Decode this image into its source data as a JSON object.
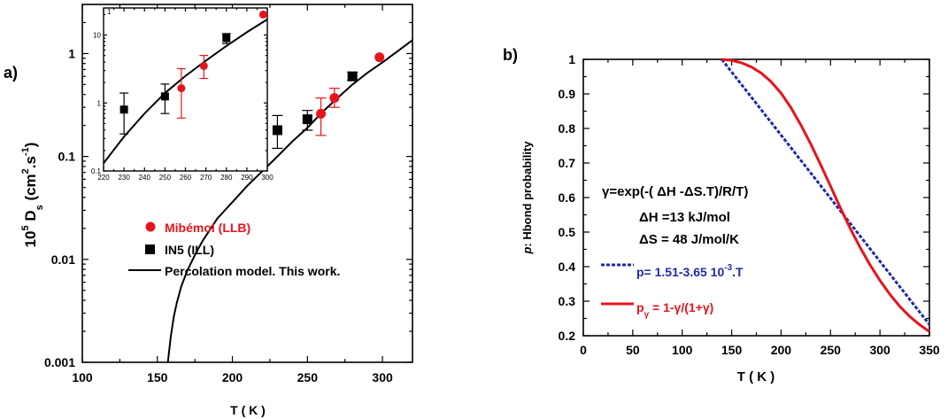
{
  "colors": {
    "red": "#e8141b",
    "black": "#000000",
    "blue": "#1f2aa8"
  },
  "chart_data": [
    {
      "type": "scatter",
      "panel_label": "a)",
      "xlabel": "T ( K )",
      "ylabel": {
        "main": "10",
        "sup1": "5",
        "mid": " D",
        "sub": "s",
        "unit": " (cm",
        "sup2": "2",
        "unit2": ".s",
        "sup3": "-1",
        "close": ")"
      },
      "xlim": [
        100,
        320
      ],
      "ylim": [
        0.001,
        3
      ],
      "yscale": "log",
      "xticks": [
        100,
        150,
        200,
        250,
        300
      ],
      "xticklabels": [
        "100",
        "150",
        "200",
        "250",
        "300"
      ],
      "yticks": [
        0.001,
        0.01,
        0.1,
        1
      ],
      "yticklabels": [
        "0.001",
        "0.01",
        "0.1",
        "1"
      ],
      "series": [
        {
          "name": "Mibémol (LLB)",
          "marker": "circle",
          "color": "#e8141b",
          "points": [
            [
              259,
              0.26,
              0.16,
              0.37
            ],
            [
              268,
              0.37,
              0.3,
              0.46
            ],
            [
              298,
              0.92,
              0.92,
              0.92
            ]
          ]
        },
        {
          "name": "IN5 (ILL)",
          "marker": "square",
          "color": "#000000",
          "points": [
            [
              230,
              0.18,
              0.12,
              0.25
            ],
            [
              250,
              0.23,
              0.18,
              0.28
            ],
            [
              280,
              0.6,
              0.55,
              0.66
            ]
          ]
        },
        {
          "name": "Percolation model. This work.",
          "kind": "curve",
          "color": "#000000",
          "x": [
            157,
            159,
            161,
            163,
            166,
            170,
            175,
            180,
            190,
            200,
            210,
            220,
            230,
            240,
            250,
            260,
            270,
            280,
            290,
            300,
            310,
            320
          ],
          "y": [
            0.001,
            0.0018,
            0.0028,
            0.0038,
            0.0055,
            0.0078,
            0.011,
            0.015,
            0.025,
            0.036,
            0.052,
            0.072,
            0.1,
            0.14,
            0.19,
            0.27,
            0.37,
            0.5,
            0.65,
            0.82,
            1.05,
            1.35
          ]
        }
      ],
      "legend": [
        "Mibémol (LLB)",
        "IN5 (ILL)",
        "Percolation model. This work."
      ],
      "inset": {
        "xlim": [
          220,
          300
        ],
        "ylim": [
          0.1,
          25
        ],
        "yscale": "log",
        "xticks": [
          220,
          230,
          240,
          250,
          260,
          270,
          280,
          290,
          300
        ],
        "xticklabels": [
          "220",
          "230",
          "240",
          "250",
          "260",
          "270",
          "280",
          "290",
          "300"
        ],
        "yticks": [
          0.1,
          1,
          10
        ],
        "yticklabels": [
          "0.1",
          "1",
          "10"
        ],
        "corner_label": "1",
        "series": [
          {
            "name": "Mibémol (LLB)",
            "marker": "circle",
            "color": "#e8141b",
            "points": [
              [
                258,
                1.65,
                0.6,
                3.2
              ],
              [
                269,
                3.5,
                2.3,
                5.0
              ],
              [
                298,
                20,
                20,
                20
              ]
            ]
          },
          {
            "name": "IN5 (ILL)",
            "marker": "square",
            "color": "#000000",
            "points": [
              [
                230,
                0.8,
                0.35,
                1.4
              ],
              [
                250,
                1.25,
                0.7,
                1.9
              ],
              [
                280,
                9.0,
                7.5,
                10.5
              ]
            ]
          },
          {
            "name": "Percolation model. This work.",
            "kind": "curve",
            "color": "#000000",
            "x": [
              220,
              230,
              240,
              250,
              260,
              270,
              280,
              290,
              300
            ],
            "y": [
              0.13,
              0.32,
              0.7,
              1.4,
              2.5,
              4.2,
              6.9,
              11,
              17
            ]
          }
        ]
      }
    },
    {
      "type": "line",
      "panel_label": "b)",
      "xlabel": "T ( K )",
      "ylabel": {
        "italic": "p",
        "rest": ": Hbond probability"
      },
      "xlim": [
        0,
        350
      ],
      "ylim": [
        0.2,
        1.0
      ],
      "xticks": [
        0,
        50,
        100,
        150,
        200,
        250,
        300,
        350
      ],
      "xticklabels": [
        "0",
        "50",
        "100",
        "150",
        "200",
        "250",
        "300",
        "350"
      ],
      "yticks": [
        0.2,
        0.3,
        0.4,
        0.5,
        0.6,
        0.7,
        0.8,
        0.9,
        1.0
      ],
      "yticklabels": [
        "0.2",
        "0.3",
        "0.4",
        "0.5",
        "0.6",
        "0.7",
        "0.8",
        "0.9",
        "1"
      ],
      "annotations": [
        "γ=exp(-( ΔH -ΔS.T)/R/T)",
        "ΔH =13 kJ/mol",
        "ΔS = 48 J/mol/K"
      ],
      "series": [
        {
          "name": "p= 1.51-3.65 10-3.T",
          "style": "dashed",
          "color": "#1f2aa8",
          "x": [
            140,
            350
          ],
          "y": [
            1.0,
            0.2325
          ]
        },
        {
          "name": "pγ = 1-γ/(1+γ)",
          "style": "solid",
          "color": "#e8141b",
          "x": [
            140,
            150,
            160,
            170,
            180,
            190,
            200,
            210,
            220,
            230,
            240,
            250,
            260,
            270,
            280,
            290,
            300,
            310,
            320,
            330,
            340,
            350
          ],
          "y": [
            1.0,
            0.997,
            0.99,
            0.978,
            0.96,
            0.935,
            0.902,
            0.86,
            0.81,
            0.755,
            0.695,
            0.633,
            0.57,
            0.51,
            0.455,
            0.405,
            0.36,
            0.32,
            0.285,
            0.256,
            0.232,
            0.212
          ]
        }
      ],
      "legend": {
        "blue": {
          "main": "p= 1.51-3.65 10",
          "sup": "-3",
          "tail": ".T"
        },
        "red": {
          "p": "p",
          "sub": "γ",
          "tail": " = 1-γ/(1+γ)"
        }
      }
    }
  ]
}
